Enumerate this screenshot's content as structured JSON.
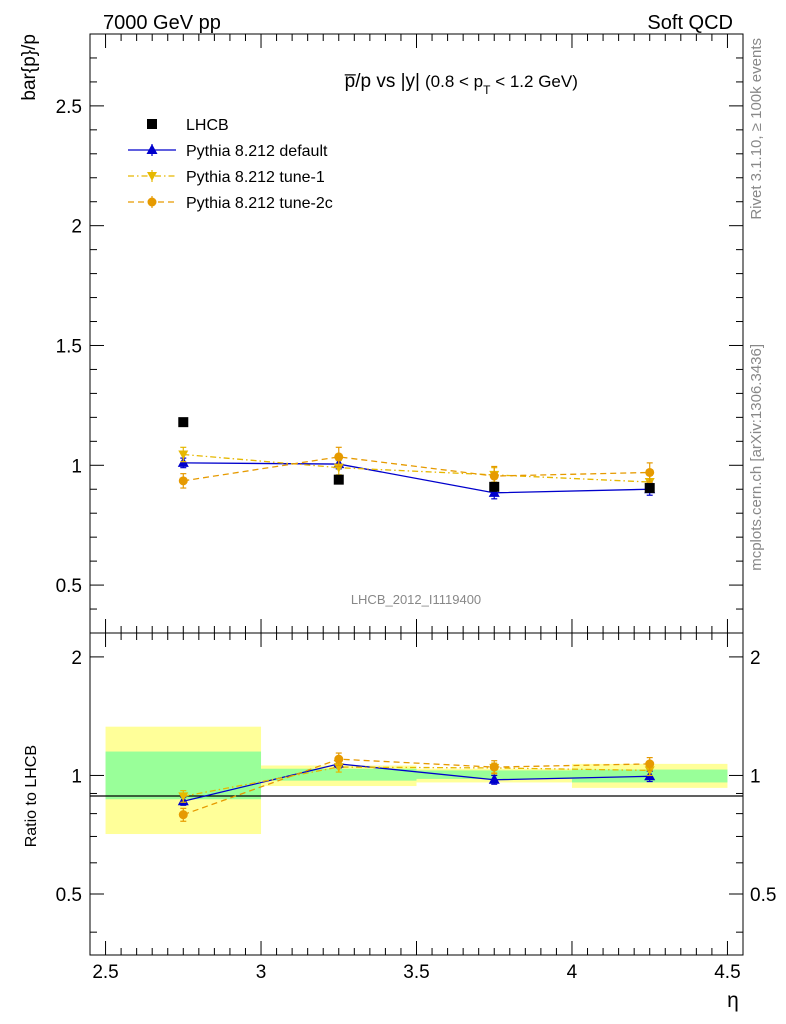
{
  "header": {
    "left": "7000 GeV pp",
    "right": "Soft QCD"
  },
  "side_labels": {
    "rivet": "Rivet 3.1.10, ≥ 100k events",
    "mcplots": "mcplots.cern.ch [arXiv:1306.3436]"
  },
  "chart_data": [
    {
      "type": "scatter",
      "title": "p̅/p vs |y|",
      "subtitle_parts": {
        "open": "(0.8 < p",
        "sub": "T",
        "close": " < 1.2 GeV)"
      },
      "ylabel": "bar{p}/p",
      "watermark": "LHCB_2012_I1119400",
      "ylim": [
        0.3,
        2.8
      ],
      "xlim": [
        2.45,
        4.55
      ],
      "yticks": [
        0.5,
        1,
        1.5,
        2,
        2.5
      ],
      "ytick_labels": [
        "0.5",
        "1",
        "1.5",
        "2",
        "2.5"
      ],
      "legend_position": "top-left",
      "series": [
        {
          "name": "LHCB",
          "color": "#000000",
          "marker": "square",
          "line": "none",
          "x": [
            2.75,
            3.25,
            3.75,
            4.25
          ],
          "y": [
            1.18,
            0.94,
            0.91,
            0.905
          ]
        },
        {
          "name": "Pythia 8.212 default",
          "color": "#0000cc",
          "marker": "triangle-up",
          "line": "solid",
          "x": [
            2.75,
            3.25,
            3.75,
            4.25
          ],
          "y": [
            1.01,
            1.005,
            0.885,
            0.9
          ],
          "err": [
            0.02,
            0.02,
            0.025,
            0.025
          ]
        },
        {
          "name": "Pythia 8.212 tune-1",
          "color": "#e6b800",
          "marker": "triangle-down",
          "line": "dashdot",
          "x": [
            2.75,
            3.25,
            3.75,
            4.25
          ],
          "y": [
            1.045,
            0.99,
            0.96,
            0.93
          ],
          "err": [
            0.03,
            0.03,
            0.03,
            0.03
          ]
        },
        {
          "name": "Pythia 8.212 tune-2c",
          "color": "#e69a00",
          "marker": "circle",
          "line": "dashed",
          "x": [
            2.75,
            3.25,
            3.75,
            4.25
          ],
          "y": [
            0.935,
            1.035,
            0.955,
            0.97
          ],
          "err": [
            0.03,
            0.04,
            0.04,
            0.04
          ]
        }
      ]
    },
    {
      "type": "scatter",
      "ylabel": "Ratio to LHCB",
      "xlabel": "η",
      "ylim": [
        0.35,
        2.3
      ],
      "xlim": [
        2.45,
        4.55
      ],
      "yticks": [
        0.5,
        1,
        2
      ],
      "ytick_labels": [
        "0.5",
        "1",
        "2"
      ],
      "xticks": [
        2.5,
        3,
        3.5,
        4,
        4.5
      ],
      "xtick_labels": [
        "2.5",
        "3",
        "3.5",
        "4",
        "4.5"
      ],
      "reference_line": 1,
      "bands": [
        {
          "x0": 2.5,
          "x1": 3.0,
          "stat": [
            0.87,
            1.15
          ],
          "total": [
            0.71,
            1.33
          ]
        },
        {
          "x0": 3.0,
          "x1": 3.5,
          "stat": [
            0.97,
            1.04
          ],
          "total": [
            0.94,
            1.06
          ]
        },
        {
          "x0": 3.5,
          "x1": 4.0,
          "stat": [
            0.98,
            1.03
          ],
          "total": [
            0.96,
            1.04
          ]
        },
        {
          "x0": 4.0,
          "x1": 4.5,
          "stat": [
            0.96,
            1.035
          ],
          "total": [
            0.93,
            1.07
          ]
        }
      ],
      "band_colors": {
        "stat": "#99ff99",
        "total": "#ffff99"
      },
      "series": [
        {
          "name": "Pythia 8.212 default",
          "color": "#0000cc",
          "marker": "triangle-up",
          "line": "solid",
          "x": [
            2.75,
            3.25,
            3.75,
            4.25
          ],
          "y": [
            0.86,
            1.07,
            0.975,
            0.995
          ],
          "err": [
            0.02,
            0.025,
            0.025,
            0.03
          ]
        },
        {
          "name": "Pythia 8.212 tune-1",
          "color": "#e6b800",
          "marker": "triangle-down",
          "line": "dashdot",
          "x": [
            2.75,
            3.25,
            3.75,
            4.25
          ],
          "y": [
            0.885,
            1.05,
            1.045,
            1.03
          ],
          "err": [
            0.03,
            0.03,
            0.03,
            0.03
          ]
        },
        {
          "name": "Pythia 8.212 tune-2c",
          "color": "#e69a00",
          "marker": "circle",
          "line": "dashed",
          "x": [
            2.75,
            3.25,
            3.75,
            4.25
          ],
          "y": [
            0.795,
            1.1,
            1.05,
            1.07
          ],
          "err": [
            0.03,
            0.04,
            0.04,
            0.04
          ]
        }
      ]
    }
  ]
}
